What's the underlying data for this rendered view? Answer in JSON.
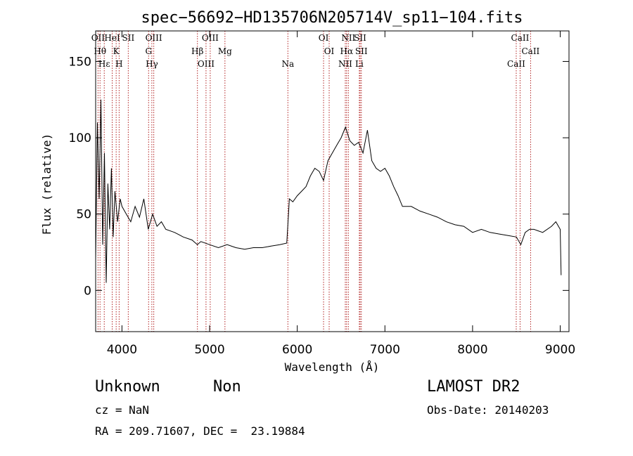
{
  "chart_data": {
    "type": "line",
    "title": "spec−56692−HD135706N205714V_sp11−104.fits",
    "xlabel": "Wavelength (Å)",
    "ylabel": "Flux (relative)",
    "xlim": [
      3700,
      9100
    ],
    "ylim": [
      -27,
      170
    ],
    "x_ticks": [
      4000,
      5000,
      6000,
      7000,
      8000,
      9000
    ],
    "y_ticks": [
      0,
      50,
      100,
      150
    ],
    "x_tick_labels": [
      "4000",
      "5000",
      "6000",
      "7000",
      "8000",
      "9000"
    ],
    "y_tick_labels": [
      "0",
      "50",
      "100",
      "150"
    ],
    "grid": false,
    "colors": {
      "spectrum": "#000000",
      "line_markers": "#b22222",
      "axes": "#000000"
    },
    "series": [
      {
        "x": [
          3700,
          3720,
          3740,
          3760,
          3780,
          3800,
          3820,
          3840,
          3860,
          3880,
          3900,
          3920,
          3950,
          3980,
          4000,
          4050,
          4100,
          4150,
          4200,
          4250,
          4300,
          4350,
          4400,
          4450,
          4500,
          4600,
          4700,
          4800,
          4860,
          4900,
          5000,
          5100,
          5200,
          5300,
          5400,
          5500,
          5600,
          5700,
          5800,
          5880,
          5900,
          5910,
          5950,
          6000,
          6050,
          6100,
          6150,
          6200,
          6250,
          6300,
          6350,
          6400,
          6450,
          6500,
          6550,
          6600,
          6650,
          6700,
          6750,
          6800,
          6850,
          6900,
          6950,
          7000,
          7050,
          7100,
          7150,
          7200,
          7300,
          7400,
          7500,
          7600,
          7700,
          7800,
          7900,
          8000,
          8100,
          8200,
          8300,
          8400,
          8500,
          8550,
          8600,
          8650,
          8700,
          8800,
          8900,
          8950,
          9000,
          9010
        ],
        "y": [
          20,
          110,
          60,
          125,
          30,
          90,
          5,
          70,
          40,
          80,
          35,
          65,
          45,
          60,
          55,
          50,
          45,
          55,
          48,
          60,
          40,
          50,
          42,
          45,
          40,
          38,
          35,
          33,
          30,
          32,
          30,
          28,
          30,
          28,
          27,
          28,
          28,
          29,
          30,
          31,
          50,
          60,
          58,
          62,
          65,
          68,
          75,
          80,
          78,
          72,
          85,
          90,
          95,
          100,
          107,
          98,
          95,
          97,
          90,
          105,
          85,
          80,
          78,
          80,
          75,
          68,
          62,
          55,
          55,
          52,
          50,
          48,
          45,
          43,
          42,
          38,
          40,
          38,
          37,
          36,
          35,
          30,
          38,
          40,
          40,
          38,
          42,
          45,
          40,
          10
        ]
      }
    ],
    "line_markers": [
      {
        "wavelength": 3727,
        "label": "OII"
      },
      {
        "wavelength": 3750,
        "label": "Hθ"
      },
      {
        "wavelength": 3798,
        "label": "Hε"
      },
      {
        "wavelength": 3889,
        "label": "HeI"
      },
      {
        "wavelength": 3934,
        "label": "K"
      },
      {
        "wavelength": 3968,
        "label": "H"
      },
      {
        "wavelength": 4072,
        "label": "SII"
      },
      {
        "wavelength": 4304,
        "label": "G"
      },
      {
        "wavelength": 4341,
        "label": "Hγ"
      },
      {
        "wavelength": 4363,
        "label": "OIII"
      },
      {
        "wavelength": 4861,
        "label": "Hβ"
      },
      {
        "wavelength": 4959,
        "label": "OIII"
      },
      {
        "wavelength": 5007,
        "label": "OIII"
      },
      {
        "wavelength": 5175,
        "label": "Mg"
      },
      {
        "wavelength": 5893,
        "label": "Na"
      },
      {
        "wavelength": 6300,
        "label": "OI"
      },
      {
        "wavelength": 6364,
        "label": "OI"
      },
      {
        "wavelength": 6548,
        "label": "NII"
      },
      {
        "wavelength": 6583,
        "label": "NII"
      },
      {
        "wavelength": 6563,
        "label": "Hα"
      },
      {
        "wavelength": 6708,
        "label": "Li"
      },
      {
        "wavelength": 6717,
        "label": "SII"
      },
      {
        "wavelength": 6731,
        "label": "SII"
      },
      {
        "wavelength": 8498,
        "label": "CaII"
      },
      {
        "wavelength": 8542,
        "label": "CaII"
      },
      {
        "wavelength": 8662,
        "label": "CaII"
      }
    ]
  },
  "info": {
    "object_class": "Unknown",
    "object_subclass": "Non",
    "survey": "LAMOST DR2",
    "redshift": "cz = NaN",
    "obs_date": "Obs-Date: 20140203",
    "coords": "RA = 209.71607, DEC =  23.19884"
  }
}
